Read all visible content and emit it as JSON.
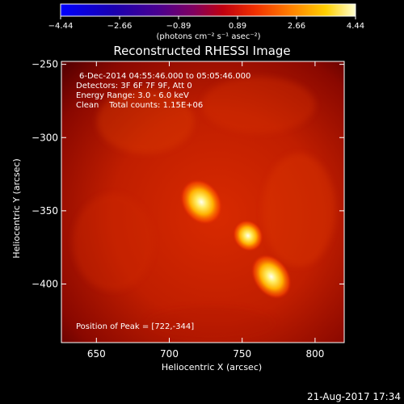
{
  "chart_data": {
    "type": "heatmap",
    "title": "Reconstructed RHESSI Image",
    "xlabel": "Heliocentric X (arcsec)",
    "ylabel": "Heliocentric Y (arcsec)",
    "xlim": [
      626,
      820
    ],
    "ylim": [
      -440,
      -248
    ],
    "x_ticks": [
      650,
      700,
      750,
      800
    ],
    "y_ticks": [
      -250,
      -300,
      -350,
      -400
    ],
    "colorbar": {
      "ticks": [
        "-4.44",
        "-2.66",
        "-0.89",
        "0.89",
        "2.66",
        "4.44"
      ],
      "range": [
        -4.44,
        4.44
      ],
      "units": "(photons cm⁻² s⁻¹ asec⁻²)"
    },
    "annotations": [
      "6-Dec-2014 04:55:46.000 to 05:05:46.000",
      "Detectors: 3F 6F 7F 9F, Att 0",
      "Energy Range: 3.0 - 6.0 keV",
      "Clean    Total counts: 1.15E+06"
    ],
    "peak_label": "Position of Peak = [722,-344]",
    "peak": [
      722,
      -344
    ],
    "sources": [
      {
        "x": 722,
        "y": -344,
        "value": 4.44
      },
      {
        "x": 754,
        "y": -367,
        "value": 3.9
      },
      {
        "x": 770,
        "y": -395,
        "value": 4.2
      }
    ]
  },
  "footer_timestamp": "21-Aug-2017 17:34"
}
